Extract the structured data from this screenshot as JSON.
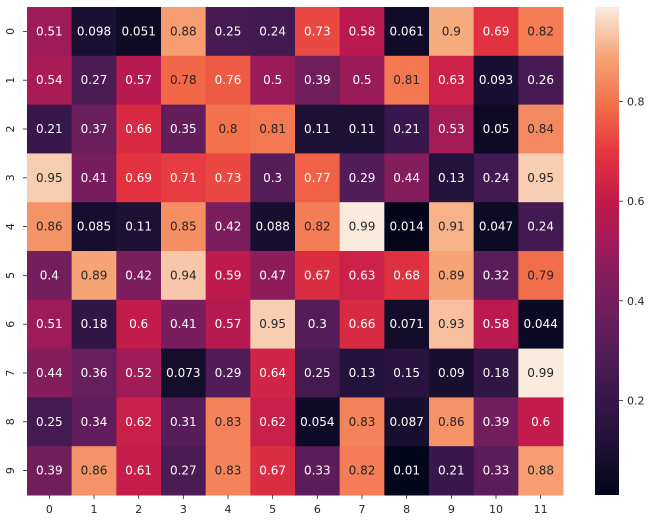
{
  "chart_data": {
    "type": "heatmap",
    "title": "",
    "xlabel": "",
    "ylabel": "",
    "x_categories": [
      "0",
      "1",
      "2",
      "3",
      "4",
      "5",
      "6",
      "7",
      "8",
      "9",
      "10",
      "11"
    ],
    "y_categories": [
      "0",
      "1",
      "2",
      "3",
      "4",
      "5",
      "6",
      "7",
      "8",
      "9"
    ],
    "values": [
      [
        0.51,
        0.098,
        0.051,
        0.88,
        0.25,
        0.24,
        0.73,
        0.58,
        0.061,
        0.9,
        0.69,
        0.82
      ],
      [
        0.54,
        0.27,
        0.57,
        0.78,
        0.76,
        0.5,
        0.39,
        0.5,
        0.81,
        0.63,
        0.093,
        0.26
      ],
      [
        0.21,
        0.37,
        0.66,
        0.35,
        0.8,
        0.81,
        0.11,
        0.11,
        0.21,
        0.53,
        0.05,
        0.84
      ],
      [
        0.95,
        0.41,
        0.69,
        0.71,
        0.73,
        0.3,
        0.77,
        0.29,
        0.44,
        0.13,
        0.24,
        0.95
      ],
      [
        0.86,
        0.085,
        0.11,
        0.85,
        0.42,
        0.088,
        0.82,
        0.99,
        0.014,
        0.91,
        0.047,
        0.24
      ],
      [
        0.4,
        0.89,
        0.42,
        0.94,
        0.59,
        0.47,
        0.67,
        0.63,
        0.68,
        0.89,
        0.32,
        0.79
      ],
      [
        0.51,
        0.18,
        0.6,
        0.41,
        0.57,
        0.95,
        0.3,
        0.66,
        0.071,
        0.93,
        0.58,
        0.044
      ],
      [
        0.44,
        0.36,
        0.52,
        0.073,
        0.29,
        0.64,
        0.25,
        0.13,
        0.15,
        0.09,
        0.18,
        0.99
      ],
      [
        0.25,
        0.34,
        0.62,
        0.31,
        0.83,
        0.62,
        0.054,
        0.83,
        0.087,
        0.86,
        0.39,
        0.6
      ],
      [
        0.39,
        0.86,
        0.61,
        0.27,
        0.83,
        0.67,
        0.33,
        0.82,
        0.01,
        0.21,
        0.33,
        0.88
      ]
    ],
    "colorbar": {
      "range": [
        0.01,
        0.99
      ],
      "ticks": [
        0.2,
        0.4,
        0.6,
        0.8
      ],
      "tick_labels": [
        "0.2",
        "0.4",
        "0.6",
        "0.8"
      ]
    },
    "colormap": "rocket",
    "annotations": true
  }
}
